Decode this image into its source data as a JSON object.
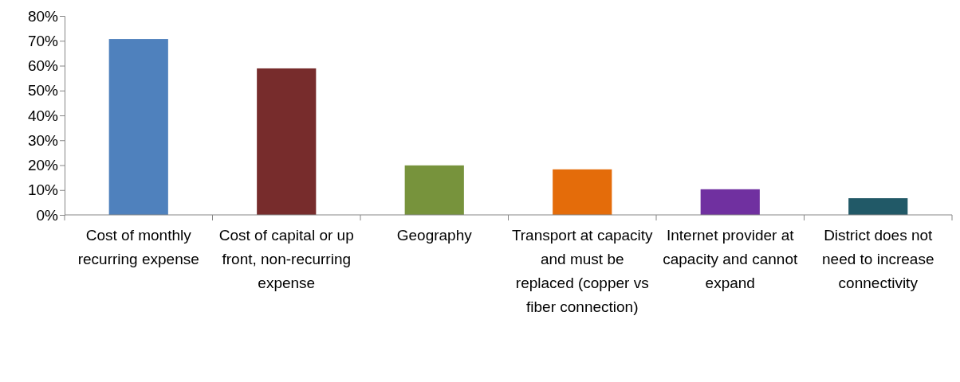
{
  "chart_data": {
    "type": "bar",
    "categories": [
      "Cost of monthly recurring expense",
      "Cost of capital or up front, non-recurring expense",
      "Geography",
      "Transport at capacity and must be replaced (copper vs fiber connection)",
      "Internet provider at capacity and cannot expand",
      "District does not need to increase connectivity"
    ],
    "values": [
      70.7,
      58.9,
      19.9,
      18.3,
      10.3,
      6.7
    ],
    "colors": [
      "#4f81bd",
      "#772c2c",
      "#77933c",
      "#e46c0a",
      "#7030a0",
      "#215967"
    ],
    "ylim": [
      0,
      80
    ],
    "yticks": [
      {
        "value": 0,
        "label": "0%"
      },
      {
        "value": 10,
        "label": "10%"
      },
      {
        "value": 20,
        "label": "20%"
      },
      {
        "value": 30,
        "label": "30%"
      },
      {
        "value": 40,
        "label": "40%"
      },
      {
        "value": 50,
        "label": "50%"
      },
      {
        "value": 60,
        "label": "60%"
      },
      {
        "value": 70,
        "label": "70%"
      },
      {
        "value": 80,
        "label": "80%"
      }
    ],
    "grid": false
  }
}
